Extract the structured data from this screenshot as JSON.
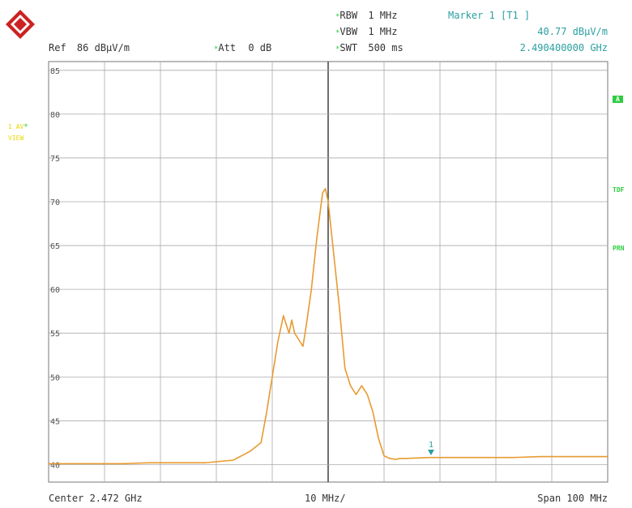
{
  "header": {
    "ref_label": "Ref",
    "ref_value": "86 dBµV/m",
    "att_label": "Att",
    "att_value": "0 dB",
    "rbw_label": "RBW",
    "rbw_value": "1 MHz",
    "vbw_label": "VBW",
    "vbw_value": "1 MHz",
    "swt_label": "SWT",
    "swt_value": "500 ms",
    "marker_title": "Marker 1 [T1 ]",
    "marker_level": "40.77 dBµV/m",
    "marker_freq": "2.490400000 GHz"
  },
  "side": {
    "trace_label": "1 AV",
    "trace_mode": "VIEW",
    "indicator_a": "A",
    "indicator_tdf": "TDF",
    "indicator_prn": "PRN"
  },
  "footer": {
    "center": "Center 2.472 GHz",
    "div": "10 MHz/",
    "span": "Span 100 MHz"
  },
  "colors": {
    "trace": "#e89a30",
    "grid": "#aaaaaa",
    "center_line": "#333333",
    "marker": "#2b9fa0"
  },
  "chart_data": {
    "type": "line",
    "ylim": [
      38,
      86
    ],
    "xlim": [
      2422,
      2522
    ],
    "x_unit": "MHz",
    "y_unit": "dBµV/m",
    "y_ticks": [
      85,
      80,
      75,
      70,
      65,
      60,
      55,
      50,
      45,
      40
    ],
    "grid": true,
    "marker": {
      "label": "1",
      "x": 2490.4,
      "y": 40.77
    },
    "series": [
      {
        "x": [
          2422,
          2426,
          2430,
          2435,
          2440,
          2445,
          2450,
          2455,
          2458,
          2460,
          2461,
          2462,
          2463,
          2464,
          2465,
          2465.5,
          2466,
          2467,
          2467.5,
          2468,
          2469,
          2470,
          2471,
          2471.5,
          2472,
          2473,
          2474,
          2475,
          2476,
          2477,
          2478,
          2479,
          2480,
          2481,
          2482,
          2483,
          2484,
          2485,
          2486,
          2490,
          2495,
          2500,
          2505,
          2510,
          2515,
          2520,
          2522
        ],
        "y": [
          40.1,
          40.1,
          40.1,
          40.1,
          40.2,
          40.2,
          40.2,
          40.5,
          41.5,
          42.5,
          46,
          50,
          54,
          57,
          55,
          56.5,
          55,
          54,
          53.5,
          55.5,
          60,
          66,
          71,
          71.5,
          70,
          64,
          58,
          51,
          49,
          48,
          49,
          48,
          46,
          43,
          41,
          40.7,
          40.6,
          40.7,
          40.7,
          40.8,
          40.8,
          40.8,
          40.8,
          40.9,
          40.9,
          40.9,
          40.9
        ]
      }
    ]
  }
}
